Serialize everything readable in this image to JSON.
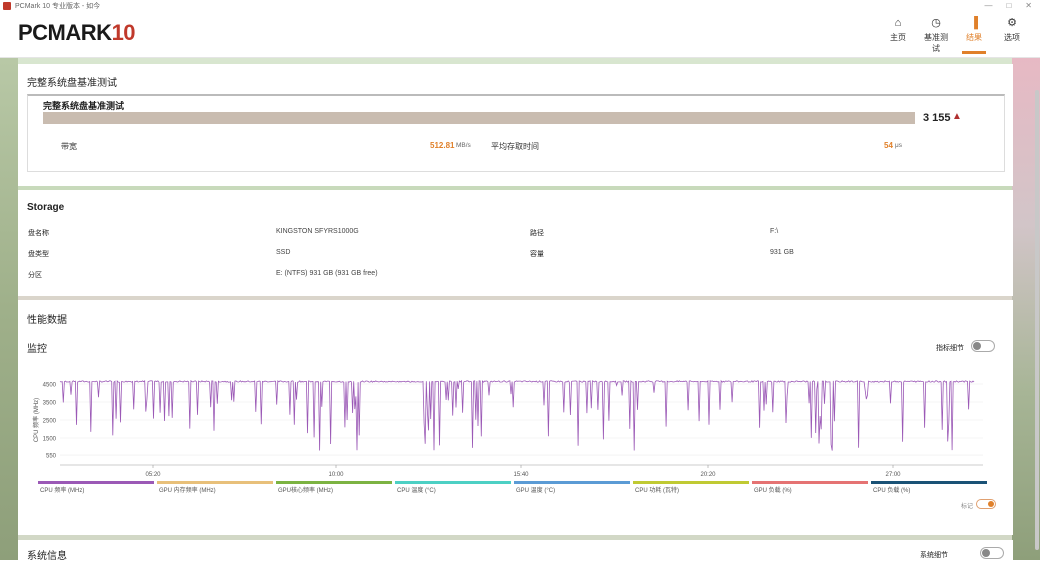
{
  "window": {
    "title": "PCMark 10 专业版本 - 如今",
    "buttons": [
      "—",
      "□",
      "✕"
    ]
  },
  "brand": {
    "name": "PCMARK",
    "version": "10"
  },
  "nav": [
    {
      "id": "home",
      "label": "主页",
      "icon": "home-icon",
      "glyph": "⌂"
    },
    {
      "id": "benchmark",
      "label": "基准测试",
      "icon": "gauge-icon",
      "glyph": "◷"
    },
    {
      "id": "results",
      "label": "结果",
      "icon": "bar-chart-icon",
      "glyph": "▐",
      "active": true
    },
    {
      "id": "options",
      "label": "选项",
      "icon": "gear-icon",
      "glyph": "⚙"
    }
  ],
  "result_panel": {
    "title": "完整系统盘基准测试",
    "test_name": "完整系统盘基准测试",
    "score": "3 155",
    "warning_icon": "warning-triangle-icon",
    "bandwidth_label": "带宽",
    "bandwidth_value": "512.81",
    "bandwidth_unit": "MB/s",
    "access_label": "平均存取时间",
    "access_value": "54",
    "access_unit": "μs"
  },
  "storage": {
    "title": "Storage",
    "rows": [
      {
        "k1": "盘名称",
        "v1": "KINGSTON SFYRS1000G",
        "k2": "路径",
        "v2": "F:\\"
      },
      {
        "k1": "盘类型",
        "v1": "SSD",
        "k2": "容量",
        "v2": "931 GB"
      },
      {
        "k1": "分区",
        "v1": "E: (NTFS) 931 GB (931 GB free)",
        "k2": "",
        "v2": ""
      }
    ]
  },
  "perf": {
    "title": "性能数据",
    "monitor_label": "监控",
    "toggle_label": "指标细节",
    "legend_toggle_label": "标记",
    "legend": [
      {
        "label": "CPU 频率 (MHz)",
        "color": "#9b59b6"
      },
      {
        "label": "GPU 内存频率 (MHz)",
        "color": "#e8c07a"
      },
      {
        "label": "GPU核心频率 (MHz)",
        "color": "#7cb342"
      },
      {
        "label": "CPU 温度 (°C)",
        "color": "#4dd0c4"
      },
      {
        "label": "GPU 温度 (°C)",
        "color": "#5b9bd5"
      },
      {
        "label": "CPU 功耗 (瓦特)",
        "color": "#c0ca33"
      },
      {
        "label": "GPU 负载 (%)",
        "color": "#e57373"
      },
      {
        "label": "CPU 负载 (%)",
        "color": "#1a5276"
      }
    ]
  },
  "chart_data": {
    "type": "line",
    "ylabel": "CPU 频率 (MHz)",
    "yticks": [
      550,
      1500,
      2500,
      3500,
      4500
    ],
    "ylim": [
      0,
      5000
    ],
    "xticks": [
      "05:20",
      "10:00",
      "15:40",
      "20:20",
      "27:00"
    ],
    "series": [
      {
        "name": "CPU 频率 (MHz)",
        "color": "#9b59b6"
      }
    ]
  },
  "sysinfo": {
    "title": "系统信息",
    "toggle_label": "系统细节"
  }
}
